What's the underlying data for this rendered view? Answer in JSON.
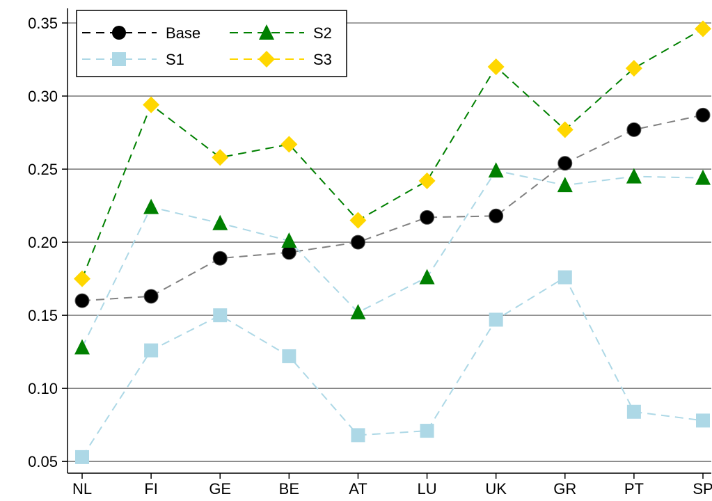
{
  "chart_data": {
    "type": "line",
    "categories": [
      "NL",
      "FI",
      "GE",
      "BE",
      "AT",
      "LU",
      "UK",
      "GR",
      "PT",
      "SP"
    ],
    "ylim": [
      0.042,
      0.36
    ],
    "yticks": [
      0.05,
      0.1,
      0.15,
      0.2,
      0.25,
      0.3,
      0.35
    ],
    "ytick_labels": [
      "0.05",
      "0.10",
      "0.15",
      "0.20",
      "0.25",
      "0.30",
      "0.35"
    ],
    "grid": "horizontal",
    "legend_position": "top-left",
    "title": "",
    "xlabel": "",
    "ylabel": "",
    "series": [
      {
        "name": "Base",
        "marker": "circle",
        "marker_color": "#000000",
        "line_color": "#808080",
        "values": [
          0.16,
          0.163,
          0.189,
          0.193,
          0.2,
          0.217,
          0.218,
          0.254,
          0.277,
          0.287
        ]
      },
      {
        "name": "S1",
        "marker": "square",
        "marker_color": "#add8e6",
        "line_color": "#add8e6",
        "values": [
          0.053,
          0.126,
          0.15,
          0.122,
          0.068,
          0.071,
          0.147,
          0.176,
          0.084,
          0.078
        ]
      },
      {
        "name": "S2",
        "marker": "triangle",
        "marker_color": "#008000",
        "line_color": "#add8e6",
        "values": [
          0.128,
          0.224,
          0.213,
          0.201,
          0.152,
          0.176,
          0.249,
          0.239,
          0.245,
          0.244
        ]
      },
      {
        "name": "S3",
        "marker": "diamond",
        "marker_color": "#ffd700",
        "line_color": "#008000",
        "values": [
          0.175,
          0.294,
          0.258,
          0.267,
          0.215,
          0.242,
          0.32,
          0.277,
          0.319,
          0.346
        ]
      }
    ]
  }
}
